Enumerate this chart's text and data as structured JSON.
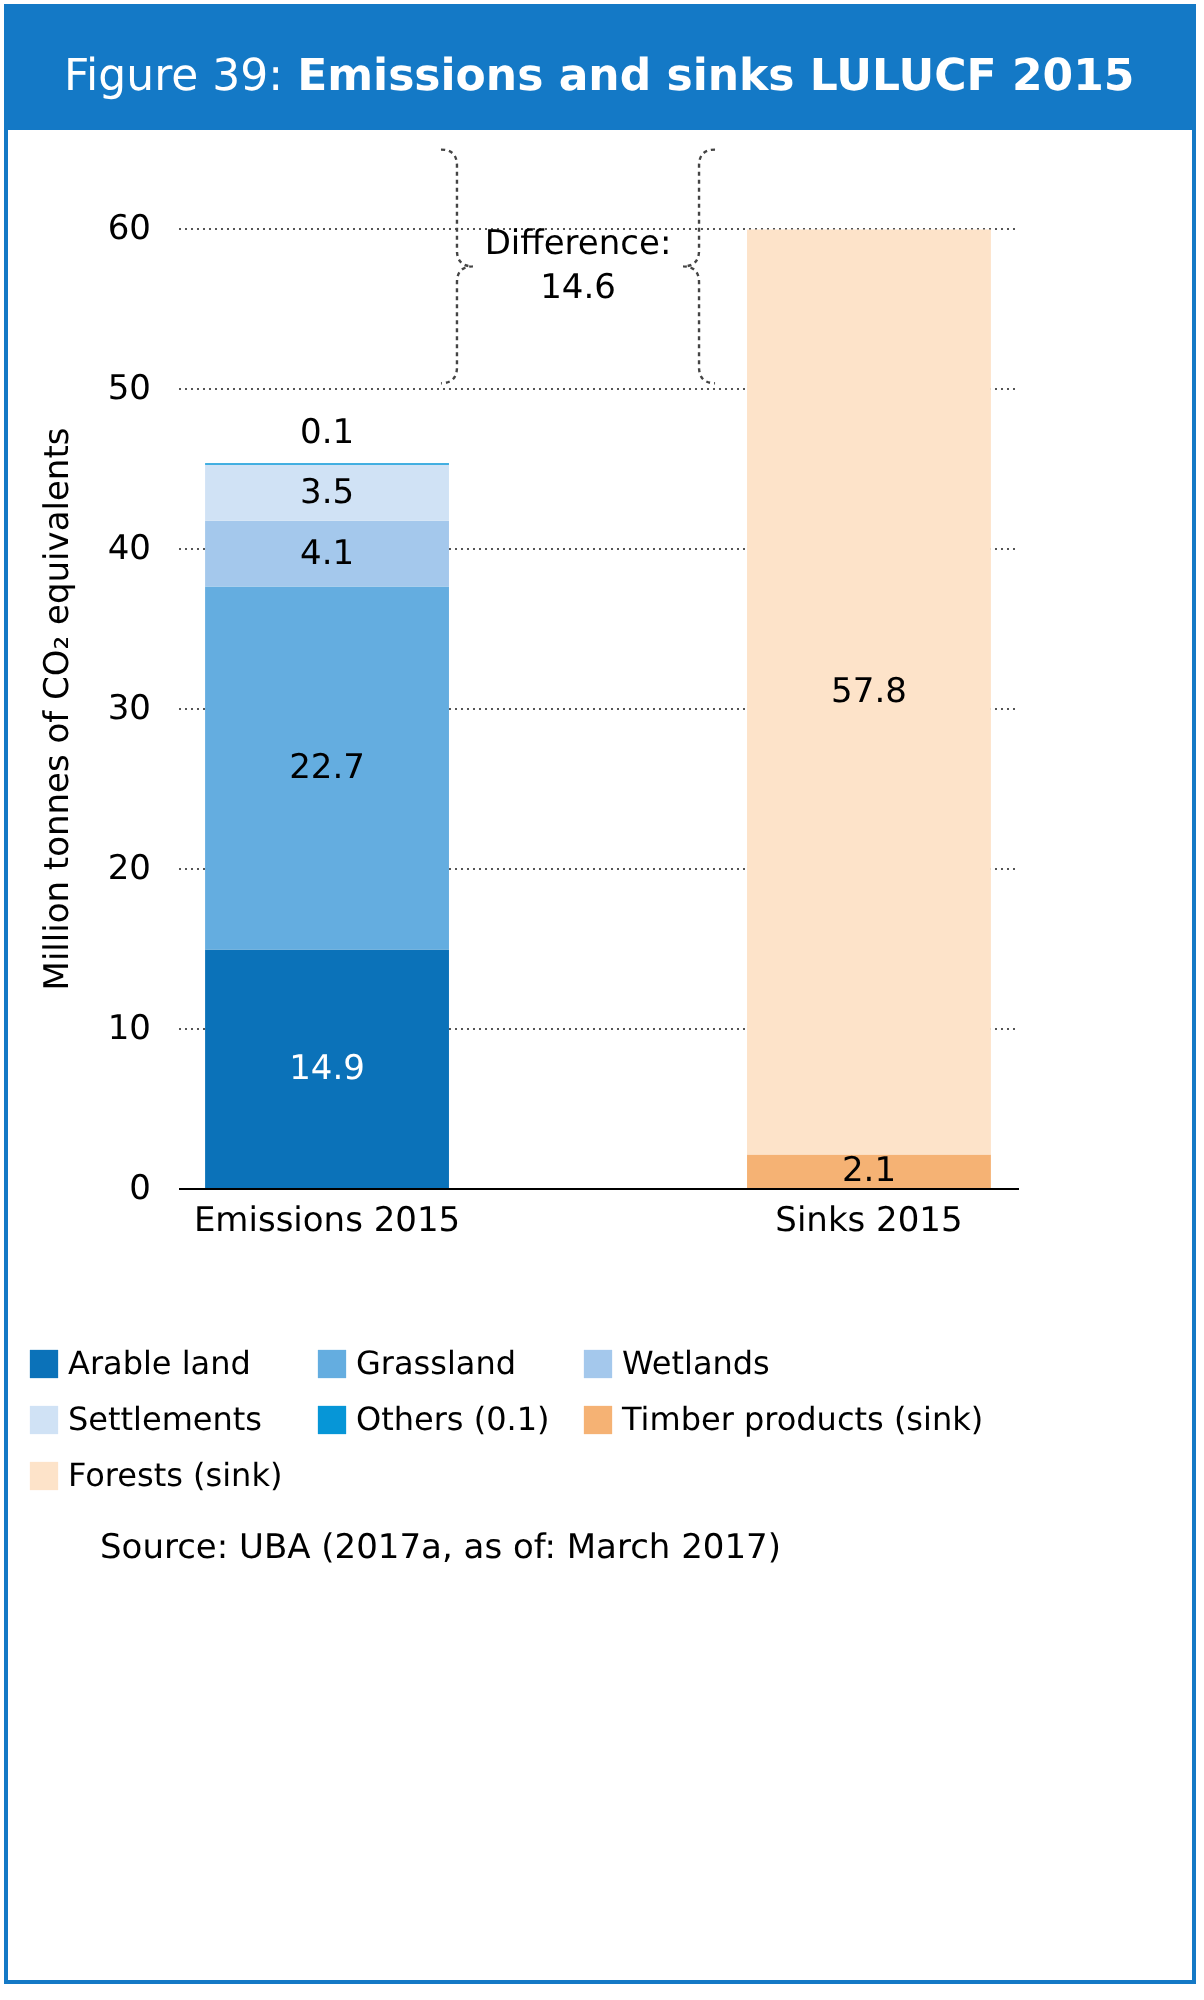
{
  "chart_data": {
    "type": "bar",
    "title": "Figure 39: Emissions and sinks LULUCF 2015",
    "ylabel": "Million tonnes of CO₂ equivalents",
    "categories": [
      "Emissions 2015",
      "Sinks 2015"
    ],
    "series": [
      {
        "name": "Arable land",
        "color": "#0b72b9",
        "values": [
          14.9,
          null
        ]
      },
      {
        "name": "Grassland",
        "color": "#64ade0",
        "values": [
          22.7,
          null
        ]
      },
      {
        "name": "Wetlands",
        "color": "#a4c8ec",
        "values": [
          4.1,
          null
        ]
      },
      {
        "name": "Settlements",
        "color": "#d0e2f5",
        "values": [
          3.5,
          null
        ]
      },
      {
        "name": "Others (0.1)",
        "color": "#0696d7",
        "values": [
          0.1,
          null
        ]
      },
      {
        "name": "Timber products (sink)",
        "color": "#f5b274",
        "values": [
          null,
          2.1
        ]
      },
      {
        "name": "Forests (sink)",
        "color": "#fde3c9",
        "values": [
          null,
          57.8
        ]
      }
    ],
    "stacked": true,
    "data_labels": true,
    "ylim": [
      0,
      60
    ],
    "yticks": [
      0,
      10,
      20,
      30,
      40,
      50,
      60
    ],
    "grid": "y",
    "legend": "bottom",
    "annotations": [
      "Difference: 14.6",
      "Source: UBA (2017a, as of: March 2017)"
    ]
  }
}
